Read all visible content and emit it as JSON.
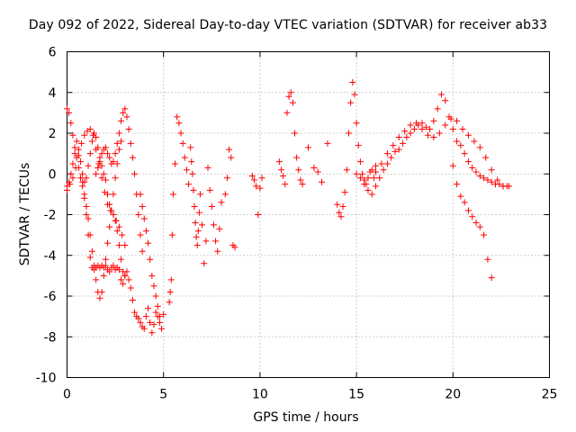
{
  "chart_data": {
    "type": "scatter",
    "title": "Day 092 of 2022, Sidereal Day-to-day VTEC variation (SDTVAR) for receiver ab33",
    "xlabel": "GPS time / hours",
    "ylabel": "SDTVAR / TECUs",
    "xlim": [
      0,
      25
    ],
    "ylim": [
      -10,
      6
    ],
    "xticks": [
      "0",
      "5",
      "10",
      "15",
      "20",
      "25"
    ],
    "yticks": [
      "-10",
      "-8",
      "-6",
      "-4",
      "-2",
      "0",
      "2",
      "4",
      "6"
    ],
    "grid": true,
    "marker": "+",
    "series": [
      {
        "name": "SDTVAR",
        "color": "#ff0000",
        "x": [
          0.0,
          0.1,
          0.2,
          0.3,
          0.4,
          0.5,
          0.6,
          0.7,
          0.8,
          0.9,
          1.0,
          1.1,
          1.2,
          1.3,
          1.4,
          1.5,
          1.6,
          1.7,
          1.8,
          1.9,
          2.0,
          2.1,
          2.2,
          2.3,
          2.4,
          2.5,
          2.6,
          2.7,
          2.8,
          2.9,
          3.0,
          3.1,
          3.2,
          3.3,
          3.4,
          3.5,
          3.6,
          3.7,
          3.8,
          3.9,
          4.0,
          4.1,
          4.2,
          4.3,
          4.4,
          4.5,
          4.6,
          4.7,
          4.8,
          4.9,
          5.0,
          0.0,
          0.1,
          0.2,
          0.3,
          0.4,
          0.5,
          0.6,
          0.7,
          0.8,
          0.9,
          1.0,
          1.1,
          1.2,
          1.3,
          1.4,
          1.5,
          1.6,
          1.7,
          1.8,
          1.9,
          2.0,
          2.1,
          2.2,
          2.3,
          2.4,
          2.5,
          2.6,
          2.7,
          2.8,
          2.9,
          3.0,
          0.0,
          0.15,
          0.3,
          0.45,
          0.6,
          0.75,
          0.9,
          1.05,
          1.2,
          1.35,
          1.5,
          1.65,
          1.8,
          1.95,
          2.1,
          2.25,
          2.4,
          2.55,
          2.7,
          2.85,
          3.0,
          0.8,
          0.9,
          1.0,
          1.1,
          1.2,
          1.3,
          1.4,
          1.5,
          1.6,
          1.7,
          1.8,
          1.9,
          2.0,
          2.1,
          2.2,
          2.3,
          2.4,
          2.5,
          2.6,
          2.7,
          2.8,
          1.5,
          1.6,
          1.7,
          1.8,
          1.9,
          2.0,
          2.1,
          2.2,
          2.3,
          2.4,
          2.5,
          2.6,
          2.7,
          2.8,
          2.9,
          3.0,
          3.1,
          3.2,
          3.3,
          3.4,
          3.5,
          3.6,
          3.7,
          3.8,
          3.9,
          3.8,
          3.9,
          4.0,
          4.1,
          4.2,
          4.3,
          4.4,
          4.5,
          4.6,
          4.7,
          4.8,
          5.3,
          5.35,
          5.4,
          5.45,
          5.5,
          5.6,
          5.7,
          5.8,
          5.9,
          6.0,
          6.1,
          6.2,
          6.3,
          6.4,
          6.45,
          6.5,
          6.55,
          6.6,
          6.65,
          6.7,
          6.75,
          6.8,
          6.85,
          6.9,
          7.0,
          7.1,
          7.2,
          7.3,
          7.4,
          7.5,
          7.6,
          7.7,
          7.8,
          7.9,
          8.0,
          8.2,
          8.3,
          8.4,
          8.5,
          8.6,
          8.7,
          9.6,
          9.7,
          9.8,
          9.9,
          10.0,
          10.1,
          11.0,
          11.1,
          11.2,
          11.3,
          11.4,
          11.5,
          11.6,
          11.7,
          11.8,
          11.9,
          12.0,
          12.1,
          12.2,
          12.5,
          12.8,
          13.0,
          13.2,
          13.5,
          14.0,
          14.1,
          14.2,
          14.3,
          14.4,
          14.5,
          14.6,
          14.7,
          14.8,
          14.9,
          15.0,
          15.1,
          15.2,
          15.3,
          15.4,
          15.5,
          15.6,
          15.7,
          15.8,
          15.9,
          16.0,
          15.0,
          15.2,
          15.4,
          15.6,
          15.8,
          16.0,
          16.2,
          16.4,
          16.6,
          16.8,
          17.0,
          17.2,
          17.4,
          17.6,
          17.8,
          18.0,
          18.2,
          18.4,
          18.6,
          18.8,
          19.0,
          19.2,
          19.4,
          19.6,
          19.8,
          20.0,
          20.2,
          20.4,
          20.6,
          20.8,
          21.0,
          21.2,
          21.4,
          21.6,
          21.8,
          22.0,
          22.2,
          22.4,
          22.6,
          22.8,
          16.0,
          16.3,
          16.6,
          16.9,
          17.2,
          17.5,
          17.8,
          18.1,
          18.4,
          18.7,
          19.0,
          19.3,
          19.6,
          19.9,
          20.2,
          20.5,
          20.8,
          21.1,
          21.4,
          21.7,
          22.0,
          22.3,
          22.6,
          22.9,
          20.0,
          20.2,
          20.4,
          20.6,
          20.8,
          21.0,
          21.2,
          21.4,
          21.6,
          21.8,
          22.0
        ],
        "y": [
          3.2,
          3.0,
          2.5,
          1.9,
          1.3,
          0.8,
          0.3,
          -0.2,
          -0.6,
          -1.2,
          -2.0,
          -3.0,
          -4.1,
          -4.6,
          -4.7,
          -4.6,
          -4.5,
          -4.6,
          -4.5,
          -4.6,
          -4.5,
          -4.7,
          -4.8,
          -4.6,
          -4.5,
          -4.7,
          -4.6,
          -4.7,
          -5.2,
          -5.4,
          -5.0,
          -4.8,
          -5.2,
          -5.6,
          -6.2,
          -6.8,
          -7.0,
          -7.1,
          -7.3,
          -7.5,
          -7.6,
          -7.0,
          -6.6,
          -7.3,
          -7.8,
          -7.4,
          -6.8,
          -7.0,
          -7.3,
          -7.6,
          -6.9,
          -0.6,
          -0.4,
          0.0,
          0.5,
          1.0,
          1.6,
          1.2,
          0.6,
          0.0,
          -0.4,
          -0.2,
          0.4,
          1.0,
          1.6,
          2.0,
          1.8,
          1.3,
          0.8,
          0.4,
          0.0,
          -0.3,
          -1.0,
          -1.5,
          -1.8,
          -2.0,
          -2.3,
          -2.8,
          -3.5,
          -4.2,
          -4.8,
          -5.0,
          -0.8,
          -0.5,
          -0.2,
          0.3,
          0.9,
          1.5,
          1.9,
          2.1,
          2.2,
          1.9,
          1.2,
          0.5,
          -0.2,
          -0.9,
          -1.5,
          -1.8,
          -2.0,
          -2.3,
          -2.6,
          -3.0,
          -3.5,
          -0.4,
          -1.0,
          -1.6,
          -2.2,
          -3.0,
          -3.8,
          -4.5,
          -5.2,
          -5.8,
          -6.1,
          -5.8,
          -5.0,
          -4.2,
          -3.4,
          -2.6,
          -1.8,
          -1.0,
          -0.2,
          0.5,
          1.2,
          1.6,
          0.0,
          0.3,
          0.6,
          1.0,
          1.2,
          1.3,
          1.0,
          0.8,
          0.5,
          0.6,
          1.0,
          1.5,
          2.0,
          2.6,
          3.0,
          3.2,
          2.8,
          2.2,
          1.5,
          0.8,
          0.0,
          -1.0,
          -2.0,
          -3.0,
          -3.8,
          -1.0,
          -1.6,
          -2.2,
          -2.8,
          -3.4,
          -4.2,
          -5.0,
          -5.5,
          -6.0,
          -6.5,
          -7.0,
          -6.3,
          -5.8,
          -5.2,
          -3.0,
          -1.0,
          0.5,
          2.8,
          2.5,
          2.0,
          1.5,
          0.8,
          0.2,
          -0.5,
          1.3,
          0.6,
          0.0,
          -0.8,
          -1.6,
          -2.4,
          -3.1,
          -3.5,
          -2.8,
          -1.9,
          -1.0,
          -2.5,
          -4.4,
          -3.3,
          0.3,
          -0.8,
          -1.6,
          -2.5,
          -3.3,
          -3.8,
          -2.7,
          -1.4,
          -1.0,
          -0.2,
          1.2,
          0.8,
          -3.5,
          -3.6,
          -0.1,
          -0.3,
          -0.6,
          -2.0,
          -0.7,
          -0.2,
          0.6,
          0.2,
          -0.1,
          -0.5,
          3.0,
          3.8,
          4.0,
          3.5,
          2.0,
          0.8,
          0.2,
          -0.3,
          -0.5,
          1.3,
          0.3,
          0.1,
          -0.4,
          1.5,
          -1.5,
          -1.9,
          -2.1,
          -1.6,
          -0.9,
          0.2,
          2.0,
          3.5,
          4.5,
          3.9,
          2.5,
          1.4,
          0.6,
          0.0,
          -0.3,
          -0.5,
          -0.2,
          0.1,
          0.2,
          -0.2,
          0.4,
          0.0,
          -0.2,
          -0.5,
          -0.8,
          -1.0,
          -0.6,
          -0.2,
          0.2,
          0.5,
          0.8,
          1.1,
          1.2,
          1.5,
          1.8,
          2.0,
          2.2,
          2.4,
          2.5,
          2.3,
          2.2,
          2.6,
          3.2,
          3.9,
          3.6,
          2.8,
          2.2,
          1.6,
          1.4,
          1.0,
          0.6,
          0.3,
          0.1,
          -0.1,
          -0.2,
          -0.3,
          -0.4,
          -0.5,
          -0.5,
          -0.6,
          -0.6,
          0.1,
          0.5,
          1.0,
          1.4,
          1.8,
          2.1,
          2.4,
          2.5,
          2.2,
          1.9,
          1.8,
          2.0,
          2.4,
          2.7,
          2.6,
          2.2,
          1.9,
          1.6,
          1.3,
          0.8,
          0.2,
          -0.3,
          -0.6,
          -0.6,
          0.4,
          -0.5,
          -1.1,
          -1.4,
          -1.8,
          -2.1,
          -2.4,
          -2.6,
          -3.0,
          -4.2,
          -5.1
        ]
      }
    ]
  }
}
